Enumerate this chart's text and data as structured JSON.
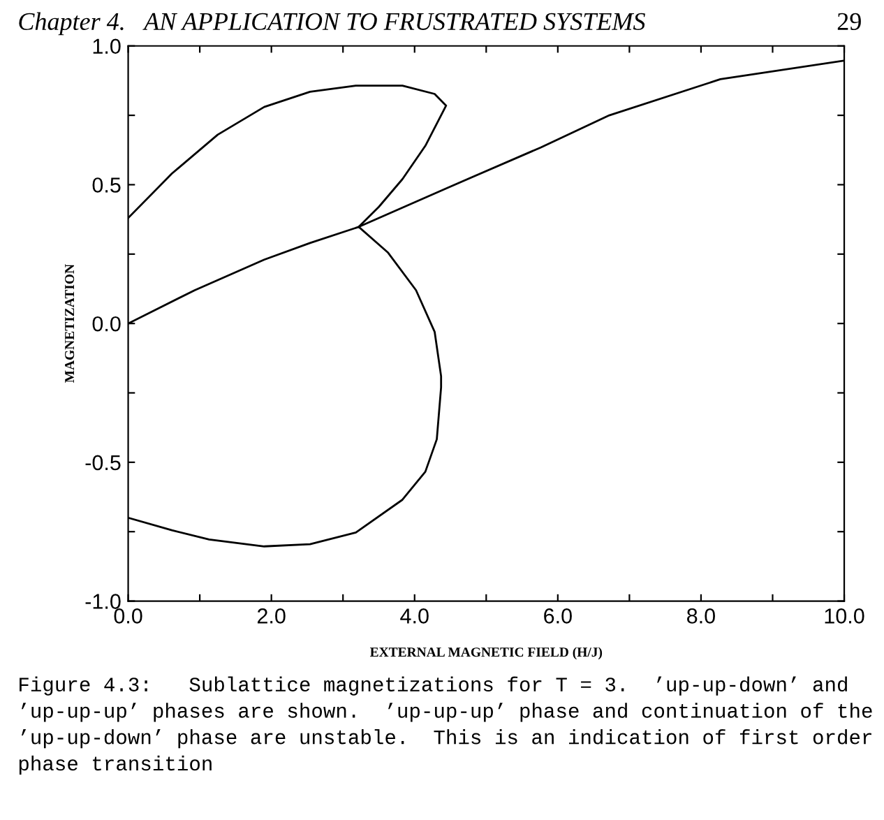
{
  "chart_data": {
    "type": "line",
    "xlabel": "EXTERNAL MAGNETIC FIELD (H/J)",
    "ylabel": "MAGNETIZATION",
    "annotations": [
      "Chapter 4.   AN APPLICATION TO FRUSTRATED SYSTEMS",
      "29",
      "Figure 4.3:   Sublattice magnetizations for T = 3.  ’up-up-down’ and ’up-up-up’ phases are shown.  ’up-up-up’ phase and continuation of the ’up-up-down’ phase are unstable.  This is an indication of first order phase transition"
    ],
    "series": [
      {
        "color": "#000000",
        "x": [
          0,
          0.61,
          1.25,
          1.9,
          2.54,
          3.18,
          3.83,
          4.28,
          4.44,
          4.39,
          4.15,
          3.83,
          3.5,
          3.22
        ],
        "values": [
          0.38,
          0.54,
          0.68,
          0.78,
          0.835,
          0.857,
          0.857,
          0.827,
          0.785,
          0.76,
          0.64,
          0.52,
          0.42,
          0.348
        ]
      },
      {
        "color": "#000000",
        "x": [
          0,
          0.93,
          1.9,
          2.54,
          3.22,
          4.47,
          5.76,
          6.72,
          8.27,
          10.0
        ],
        "values": [
          0,
          0.12,
          0.23,
          0.29,
          0.348,
          0.49,
          0.634,
          0.75,
          0.88,
          0.947
        ]
      },
      {
        "color": "#000000",
        "x": [
          3.22,
          3.63,
          4.02,
          4.28,
          4.37,
          4.37,
          4.31,
          4.15,
          3.83,
          3.18,
          2.54,
          1.9,
          1.13,
          0.61,
          0
        ],
        "values": [
          0.348,
          0.255,
          0.12,
          -0.03,
          -0.19,
          -0.23,
          -0.417,
          -0.534,
          -0.635,
          -0.753,
          -0.795,
          -0.803,
          -0.778,
          -0.745,
          -0.7
        ]
      }
    ],
    "xlim": [
      0,
      10
    ],
    "ylim": [
      -1,
      1
    ],
    "xticks": [
      {
        "value": 0,
        "label": "0.0"
      },
      {
        "value": 1,
        "label": null
      },
      {
        "value": 2,
        "label": "2.0"
      },
      {
        "value": 3,
        "label": null
      },
      {
        "value": 4,
        "label": "4.0"
      },
      {
        "value": 5,
        "label": null
      },
      {
        "value": 6,
        "label": "6.0"
      },
      {
        "value": 7,
        "label": null
      },
      {
        "value": 8,
        "label": "8.0"
      },
      {
        "value": 9,
        "label": null
      },
      {
        "value": 10,
        "label": "10.0"
      }
    ],
    "yticks": [
      {
        "value": -1,
        "label": "-1.0"
      },
      {
        "value": -0.75,
        "label": null
      },
      {
        "value": -0.5,
        "label": "-0.5"
      },
      {
        "value": -0.25,
        "label": null
      },
      {
        "value": 0,
        "label": "0.0"
      },
      {
        "value": 0.25,
        "label": null
      },
      {
        "value": 0.5,
        "label": "0.5"
      },
      {
        "value": 0.75,
        "label": null
      },
      {
        "value": 1,
        "label": "1.0"
      }
    ],
    "grid": false,
    "legend": false,
    "marker": "none",
    "line_style": "solid"
  }
}
